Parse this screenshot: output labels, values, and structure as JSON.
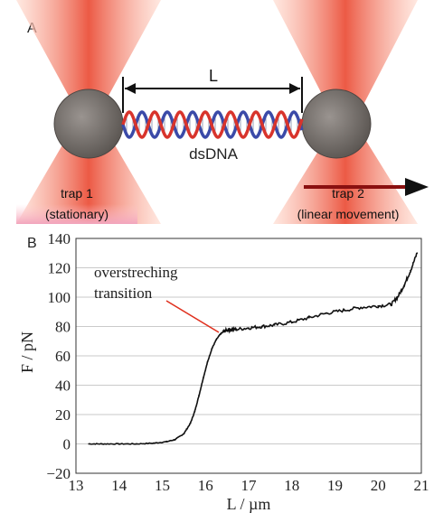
{
  "panel_a": {
    "label": "A",
    "length_label": "L",
    "molecule_label": "dsDNA",
    "trap1": {
      "name": "trap 1",
      "note": "(stationary)"
    },
    "trap2": {
      "name": "trap 2",
      "note": "(linear movement)"
    },
    "colors": {
      "beam": "#e8503c",
      "bead": "#6f6a66",
      "helix_red": "#d8342c",
      "helix_blue": "#3b4aa8",
      "arrow": "#8a1010"
    }
  },
  "panel_b": {
    "label": "B",
    "annotation": [
      "overstreching",
      "transition"
    ]
  },
  "chart_data": {
    "type": "line",
    "xlabel": "L / µm",
    "ylabel": "F / pN",
    "xlim": [
      13,
      21
    ],
    "ylim": [
      -20,
      140
    ],
    "xticks": [
      13,
      14,
      15,
      16,
      17,
      18,
      19,
      20,
      21
    ],
    "yticks": [
      -20,
      0,
      20,
      40,
      60,
      80,
      100,
      120,
      140
    ],
    "grid": "horizontal",
    "series": [
      {
        "x": [
          13.3,
          13.6,
          14.0,
          14.4,
          14.8,
          15.1,
          15.3,
          15.5,
          15.65,
          15.75,
          15.85,
          15.95,
          16.05,
          16.15,
          16.25,
          16.35,
          16.45,
          16.55,
          16.7,
          17.0,
          17.3,
          17.6,
          18.0,
          18.4,
          18.8,
          19.2,
          19.6,
          20.0,
          20.3,
          20.45,
          20.6,
          20.75,
          20.9
        ],
        "y": [
          0,
          0,
          0,
          0,
          0.5,
          1.5,
          3,
          7,
          14,
          22,
          33,
          45,
          56,
          65,
          71,
          75,
          77,
          78,
          78,
          79,
          80,
          81,
          83,
          86,
          89,
          91,
          93,
          94,
          95,
          100,
          108,
          118,
          130
        ]
      }
    ],
    "line_color": "#111111"
  }
}
